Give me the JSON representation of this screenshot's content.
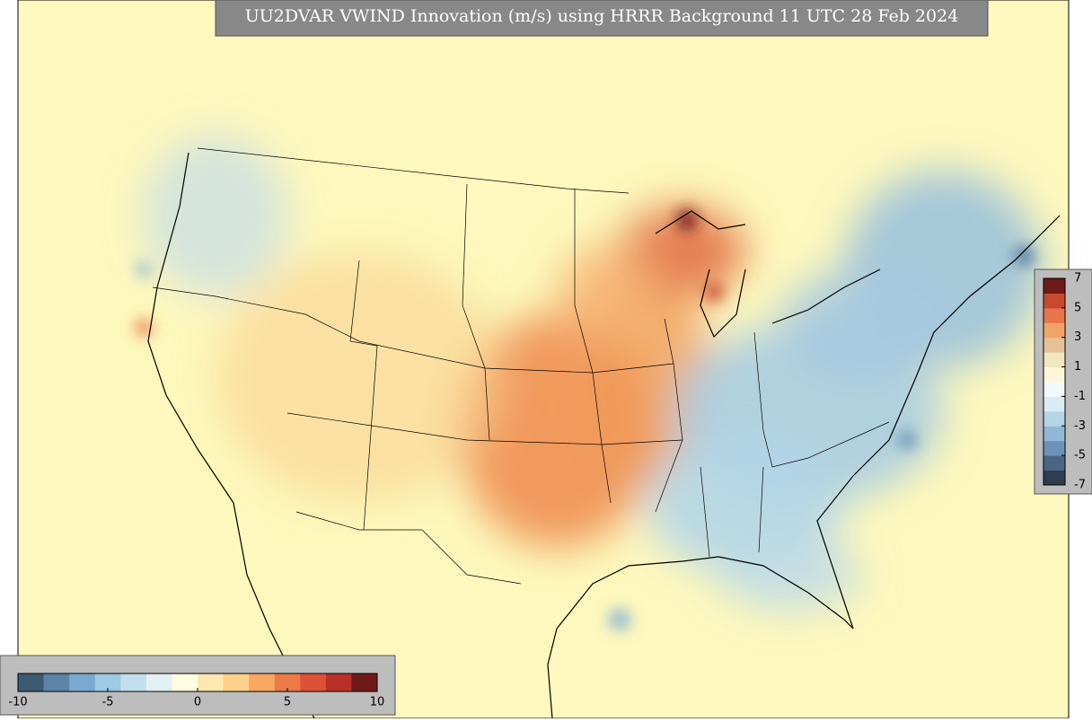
{
  "title": "UU2DVAR VWIND Innovation (m/s) using HRRR Background 11 UTC 28 Feb 2024",
  "colorbars": [
    {
      "orientation": "horizontal",
      "lim": [
        -10,
        10
      ],
      "ticks": [
        -10,
        -5,
        0,
        5,
        10
      ],
      "colors": [
        "#3d5a73",
        "#5b84a6",
        "#7aa9cf",
        "#9ccbe3",
        "#c2dfee",
        "#e3f0f5",
        "#fffde0",
        "#fde9b0",
        "#fbd08a",
        "#f8a860",
        "#ec7a48",
        "#dc5138",
        "#b83028",
        "#6e1a1a"
      ]
    },
    {
      "orientation": "vertical",
      "lim": [
        -7,
        7
      ],
      "ticks": [
        7,
        5,
        3,
        1,
        -1,
        -3,
        -5,
        -7
      ],
      "colors": [
        "#2e3d4f",
        "#4a6683",
        "#6b93b8",
        "#8fb8d6",
        "#b5d4e6",
        "#d9ebf3",
        "#f3f9fb",
        "#fdf6d8",
        "#f0e6c0",
        "#e3c296",
        "#f2a468",
        "#e8744a",
        "#c9492f",
        "#6e1a1a"
      ]
    }
  ]
}
